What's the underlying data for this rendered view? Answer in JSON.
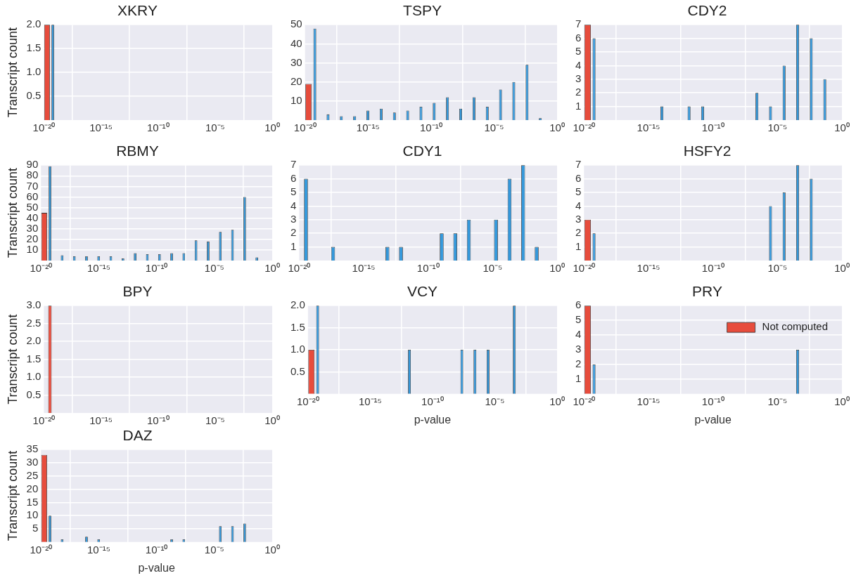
{
  "chart_data": [
    {
      "type": "histogram",
      "title": "XKRY",
      "ylabel": "Transcript count",
      "log": "x",
      "grid": true,
      "bins": [
        1e-20,
        1.13e-19,
        1.27e-18,
        1.44e-17,
        1.63e-16,
        1.83e-15,
        2.07e-14,
        2.33e-13,
        2.64e-12,
        2.98e-11,
        3.36e-10,
        3.79e-09,
        4.28e-08,
        4.83e-07,
        5.46e-06,
        6.15e-05,
        0.000695,
        0.00785,
        0.0885,
        1
      ],
      "xlim": [
        1e-20,
        1
      ],
      "xticks": [
        {
          "value": 1e-20,
          "label": "10⁻²⁰"
        },
        {
          "value": 1e-15,
          "label": "10⁻¹⁵"
        },
        {
          "value": 1e-10,
          "label": "10⁻¹⁰"
        },
        {
          "value": 1e-05,
          "label": "10⁻⁵"
        },
        {
          "value": 1,
          "label": "10⁰"
        }
      ],
      "ylim": [
        0,
        2
      ],
      "yticks": [
        {
          "value": 0.5,
          "label": "0.5"
        },
        {
          "value": 1,
          "label": "1.0"
        },
        {
          "value": 1.5,
          "label": "1.5"
        },
        {
          "value": 2,
          "label": "2.0"
        }
      ],
      "series": [
        {
          "color": "#e74c3c",
          "values": [
            2,
            0,
            0,
            0,
            0,
            0,
            0,
            0,
            0,
            0,
            0,
            0,
            0,
            0,
            0,
            0,
            0,
            0,
            0
          ]
        },
        {
          "color": "#3498db",
          "values": [
            2,
            0,
            0,
            0,
            0,
            0,
            0,
            0,
            0,
            0,
            0,
            0,
            0,
            0,
            0,
            0,
            0,
            0,
            0
          ]
        }
      ]
    },
    {
      "type": "histogram",
      "title": "TSPY",
      "log": "x",
      "grid": true,
      "bins": [
        1e-20,
        1.13e-19,
        1.27e-18,
        1.44e-17,
        1.63e-16,
        1.83e-15,
        2.07e-14,
        2.33e-13,
        2.64e-12,
        2.98e-11,
        3.36e-10,
        3.79e-09,
        4.28e-08,
        4.83e-07,
        5.46e-06,
        6.15e-05,
        0.000695,
        0.00785,
        0.0885,
        1
      ],
      "xlim": [
        1e-20,
        1
      ],
      "xticks": [
        {
          "value": 1e-20,
          "label": "10⁻²⁰"
        },
        {
          "value": 1e-15,
          "label": "10⁻¹⁵"
        },
        {
          "value": 1e-10,
          "label": "10⁻¹⁰"
        },
        {
          "value": 1e-05,
          "label": "10⁻⁵"
        },
        {
          "value": 1,
          "label": "10⁰"
        }
      ],
      "ylim": [
        0,
        50
      ],
      "yticks": [
        10,
        20,
        30,
        40,
        50
      ],
      "series": [
        {
          "color": "#e74c3c",
          "values": [
            19,
            0,
            0,
            0,
            0,
            0,
            0,
            0,
            0,
            0,
            0,
            0,
            0,
            0,
            0,
            0,
            0,
            0,
            0
          ]
        },
        {
          "color": "#3498db",
          "values": [
            48,
            3,
            2,
            2,
            5,
            6,
            4,
            5,
            7,
            9,
            12,
            6,
            12,
            7,
            16,
            20,
            29,
            1,
            0
          ]
        }
      ]
    },
    {
      "type": "histogram",
      "title": "CDY2",
      "log": "x",
      "grid": true,
      "bins": [
        1e-20,
        1.13e-19,
        1.27e-18,
        1.44e-17,
        1.63e-16,
        1.83e-15,
        2.07e-14,
        2.33e-13,
        2.64e-12,
        2.98e-11,
        3.36e-10,
        3.79e-09,
        4.28e-08,
        4.83e-07,
        5.46e-06,
        6.15e-05,
        0.000695,
        0.00785,
        0.0885,
        1
      ],
      "xlim": [
        1e-20,
        1
      ],
      "xticks": [
        {
          "value": 1e-20,
          "label": "10⁻²⁰"
        },
        {
          "value": 1e-15,
          "label": "10⁻¹⁵"
        },
        {
          "value": 1e-10,
          "label": "10⁻¹⁰"
        },
        {
          "value": 1e-05,
          "label": "10⁻⁵"
        },
        {
          "value": 1,
          "label": "10⁰"
        }
      ],
      "ylim": [
        0,
        7
      ],
      "yticks": [
        1,
        2,
        3,
        4,
        5,
        6,
        7
      ],
      "series": [
        {
          "color": "#e74c3c",
          "values": [
            7,
            0,
            0,
            0,
            0,
            0,
            0,
            0,
            0,
            0,
            0,
            0,
            0,
            0,
            0,
            0,
            0,
            0,
            0
          ]
        },
        {
          "color": "#3498db",
          "values": [
            6,
            0,
            0,
            0,
            0,
            1,
            0,
            1,
            1,
            0,
            0,
            0,
            2,
            1,
            4,
            7,
            6,
            3,
            0
          ]
        }
      ]
    },
    {
      "type": "histogram",
      "title": "RBMY",
      "ylabel": "Transcript count",
      "log": "x",
      "grid": true,
      "bins": [
        1e-20,
        1.13e-19,
        1.27e-18,
        1.44e-17,
        1.63e-16,
        1.83e-15,
        2.07e-14,
        2.33e-13,
        2.64e-12,
        2.98e-11,
        3.36e-10,
        3.79e-09,
        4.28e-08,
        4.83e-07,
        5.46e-06,
        6.15e-05,
        0.000695,
        0.00785,
        0.0885,
        1
      ],
      "xlim": [
        1e-20,
        1
      ],
      "xticks": [
        {
          "value": 1e-20,
          "label": "10⁻²⁰"
        },
        {
          "value": 1e-15,
          "label": "10⁻¹⁵"
        },
        {
          "value": 1e-10,
          "label": "10⁻¹⁰"
        },
        {
          "value": 1e-05,
          "label": "10⁻⁵"
        },
        {
          "value": 1,
          "label": "10⁰"
        }
      ],
      "ylim": [
        0,
        90
      ],
      "yticks": [
        10,
        20,
        30,
        40,
        50,
        60,
        70,
        80,
        90
      ],
      "series": [
        {
          "color": "#e74c3c",
          "values": [
            45,
            0,
            0,
            0,
            0,
            0,
            0,
            0,
            0,
            0,
            0,
            0,
            0,
            0,
            0,
            0,
            0,
            0,
            0
          ]
        },
        {
          "color": "#3498db",
          "values": [
            89,
            5,
            4,
            4,
            4,
            4,
            2,
            7,
            6,
            6,
            7,
            7,
            19,
            18,
            27,
            29,
            60,
            3,
            0
          ]
        }
      ]
    },
    {
      "type": "histogram",
      "title": "CDY1",
      "log": "x",
      "grid": true,
      "bins": [
        1e-20,
        1.13e-19,
        1.27e-18,
        1.44e-17,
        1.63e-16,
        1.83e-15,
        2.07e-14,
        2.33e-13,
        2.64e-12,
        2.98e-11,
        3.36e-10,
        3.79e-09,
        4.28e-08,
        4.83e-07,
        5.46e-06,
        6.15e-05,
        0.000695,
        0.00785,
        0.0885,
        1
      ],
      "xlim": [
        1e-20,
        1
      ],
      "xticks": [
        {
          "value": 1e-20,
          "label": "10⁻²⁰"
        },
        {
          "value": 1e-15,
          "label": "10⁻¹⁵"
        },
        {
          "value": 1e-10,
          "label": "10⁻¹⁰"
        },
        {
          "value": 1e-05,
          "label": "10⁻⁵"
        },
        {
          "value": 1,
          "label": "10⁰"
        }
      ],
      "ylim": [
        0,
        7
      ],
      "yticks": [
        1,
        2,
        3,
        4,
        5,
        6,
        7
      ],
      "series": [
        {
          "color": "#3498db",
          "values": [
            6,
            0,
            1,
            0,
            0,
            0,
            1,
            1,
            0,
            0,
            2,
            2,
            3,
            0,
            3,
            6,
            7,
            1,
            0
          ]
        }
      ]
    },
    {
      "type": "histogram",
      "title": "HSFY2",
      "log": "x",
      "grid": true,
      "bins": [
        1e-20,
        1.13e-19,
        1.27e-18,
        1.44e-17,
        1.63e-16,
        1.83e-15,
        2.07e-14,
        2.33e-13,
        2.64e-12,
        2.98e-11,
        3.36e-10,
        3.79e-09,
        4.28e-08,
        4.83e-07,
        5.46e-06,
        6.15e-05,
        0.000695,
        0.00785,
        0.0885,
        1
      ],
      "xlim": [
        1e-20,
        1
      ],
      "xticks": [
        {
          "value": 1e-20,
          "label": "10⁻²⁰"
        },
        {
          "value": 1e-15,
          "label": "10⁻¹⁵"
        },
        {
          "value": 1e-10,
          "label": "10⁻¹⁰"
        },
        {
          "value": 1e-05,
          "label": "10⁻⁵"
        },
        {
          "value": 1,
          "label": "10⁰"
        }
      ],
      "ylim": [
        0,
        7
      ],
      "yticks": [
        1,
        2,
        3,
        4,
        5,
        6,
        7
      ],
      "series": [
        {
          "color": "#e74c3c",
          "values": [
            3,
            0,
            0,
            0,
            0,
            0,
            0,
            0,
            0,
            0,
            0,
            0,
            0,
            0,
            0,
            0,
            0,
            0,
            0
          ]
        },
        {
          "color": "#3498db",
          "values": [
            2,
            0,
            0,
            0,
            0,
            0,
            0,
            0,
            0,
            0,
            0,
            0,
            0,
            4,
            5,
            7,
            6,
            0,
            0
          ]
        }
      ]
    },
    {
      "type": "histogram",
      "title": "BPY",
      "ylabel": "Transcript count",
      "log": "x",
      "grid": true,
      "bins": [
        1e-20,
        1.13e-19,
        1.27e-18,
        1.44e-17,
        1.63e-16,
        1.83e-15,
        2.07e-14,
        2.33e-13,
        2.64e-12,
        2.98e-11,
        3.36e-10,
        3.79e-09,
        4.28e-08,
        4.83e-07,
        5.46e-06,
        6.15e-05,
        0.000695,
        0.00785,
        0.0885,
        1
      ],
      "xlim": [
        1e-20,
        1
      ],
      "xticks": [
        {
          "value": 1e-20,
          "label": "10⁻²⁰"
        },
        {
          "value": 1e-15,
          "label": "10⁻¹⁵"
        },
        {
          "value": 1e-10,
          "label": "10⁻¹⁰"
        },
        {
          "value": 1e-05,
          "label": "10⁻⁵"
        },
        {
          "value": 1,
          "label": "10⁰"
        }
      ],
      "ylim": [
        0,
        3
      ],
      "yticks": [
        {
          "value": 0.5,
          "label": "0.5"
        },
        {
          "value": 1,
          "label": "1.0"
        },
        {
          "value": 1.5,
          "label": "1.5"
        },
        {
          "value": 2,
          "label": "2.0"
        },
        {
          "value": 2.5,
          "label": "2.5"
        },
        {
          "value": 3,
          "label": "3.0"
        }
      ],
      "series": [
        {
          "color": "#e74c3c",
          "values": [
            3,
            0,
            0,
            0,
            0,
            0,
            0,
            0,
            0,
            0,
            0,
            0,
            0,
            0,
            0,
            0,
            0,
            0,
            0
          ]
        }
      ]
    },
    {
      "type": "histogram",
      "title": "VCY",
      "xlabel": "p-value",
      "log": "x",
      "grid": true,
      "bins": [
        1e-20,
        1.13e-19,
        1.27e-18,
        1.44e-17,
        1.63e-16,
        1.83e-15,
        2.07e-14,
        2.33e-13,
        2.64e-12,
        2.98e-11,
        3.36e-10,
        3.79e-09,
        4.28e-08,
        4.83e-07,
        5.46e-06,
        6.15e-05,
        0.000695,
        0.00785,
        0.0885,
        1
      ],
      "xlim": [
        1e-20,
        1
      ],
      "xticks": [
        {
          "value": 1e-20,
          "label": "10⁻²⁰"
        },
        {
          "value": 1e-15,
          "label": "10⁻¹⁵"
        },
        {
          "value": 1e-10,
          "label": "10⁻¹⁰"
        },
        {
          "value": 1e-05,
          "label": "10⁻⁵"
        },
        {
          "value": 1,
          "label": "10⁰"
        }
      ],
      "ylim": [
        0,
        2
      ],
      "yticks": [
        {
          "value": 0.5,
          "label": "0.5"
        },
        {
          "value": 1,
          "label": "1.0"
        },
        {
          "value": 1.5,
          "label": "1.5"
        },
        {
          "value": 2,
          "label": "2.0"
        }
      ],
      "series": [
        {
          "color": "#e74c3c",
          "values": [
            1,
            0,
            0,
            0,
            0,
            0,
            0,
            0,
            0,
            0,
            0,
            0,
            0,
            0,
            0,
            0,
            0,
            0,
            0
          ]
        },
        {
          "color": "#3498db",
          "values": [
            2,
            0,
            0,
            0,
            0,
            0,
            0,
            1,
            0,
            0,
            0,
            1,
            1,
            1,
            0,
            2,
            0,
            0,
            0
          ]
        }
      ]
    },
    {
      "type": "histogram",
      "title": "PRY",
      "xlabel": "p-value",
      "log": "x",
      "grid": true,
      "legend": "top right",
      "bins": [
        1e-20,
        1.13e-19,
        1.27e-18,
        1.44e-17,
        1.63e-16,
        1.83e-15,
        2.07e-14,
        2.33e-13,
        2.64e-12,
        2.98e-11,
        3.36e-10,
        3.79e-09,
        4.28e-08,
        4.83e-07,
        5.46e-06,
        6.15e-05,
        0.000695,
        0.00785,
        0.0885,
        1
      ],
      "xlim": [
        1e-20,
        1
      ],
      "xticks": [
        {
          "value": 1e-20,
          "label": "10⁻²⁰"
        },
        {
          "value": 1e-15,
          "label": "10⁻¹⁵"
        },
        {
          "value": 1e-10,
          "label": "10⁻¹⁰"
        },
        {
          "value": 1e-05,
          "label": "10⁻⁵"
        },
        {
          "value": 1,
          "label": "10⁰"
        }
      ],
      "ylim": [
        0,
        6
      ],
      "yticks": [
        1,
        2,
        3,
        4,
        5,
        6
      ],
      "series": [
        {
          "name": "Not computed",
          "color": "#e74c3c",
          "values": [
            6,
            0,
            0,
            0,
            0,
            0,
            0,
            0,
            0,
            0,
            0,
            0,
            0,
            0,
            0,
            0,
            0,
            0,
            0
          ]
        },
        {
          "color": "#3498db",
          "values": [
            2,
            0,
            0,
            0,
            0,
            0,
            0,
            0,
            0,
            0,
            0,
            0,
            0,
            0,
            0,
            3,
            0,
            0,
            0
          ]
        }
      ]
    },
    {
      "type": "histogram",
      "title": "DAZ",
      "ylabel": "Transcript count",
      "xlabel": "p-value",
      "log": "x",
      "grid": true,
      "bins": [
        1e-20,
        1.13e-19,
        1.27e-18,
        1.44e-17,
        1.63e-16,
        1.83e-15,
        2.07e-14,
        2.33e-13,
        2.64e-12,
        2.98e-11,
        3.36e-10,
        3.79e-09,
        4.28e-08,
        4.83e-07,
        5.46e-06,
        6.15e-05,
        0.000695,
        0.00785,
        0.0885,
        1
      ],
      "xlim": [
        1e-20,
        1
      ],
      "xticks": [
        {
          "value": 1e-20,
          "label": "10⁻²⁰"
        },
        {
          "value": 1e-15,
          "label": "10⁻¹⁵"
        },
        {
          "value": 1e-10,
          "label": "10⁻¹⁰"
        },
        {
          "value": 1e-05,
          "label": "10⁻⁵"
        },
        {
          "value": 1,
          "label": "10⁰"
        }
      ],
      "ylim": [
        0,
        35
      ],
      "yticks": [
        5,
        10,
        15,
        20,
        25,
        30,
        35
      ],
      "series": [
        {
          "color": "#e74c3c",
          "values": [
            33,
            0,
            0,
            0,
            0,
            0,
            0,
            0,
            0,
            0,
            0,
            0,
            0,
            0,
            0,
            0,
            0,
            0,
            0
          ]
        },
        {
          "color": "#3498db",
          "values": [
            10,
            1,
            0,
            2,
            1,
            0,
            0,
            0,
            0,
            0,
            1,
            1,
            0,
            0,
            6,
            6,
            7,
            0,
            0
          ]
        }
      ]
    }
  ]
}
